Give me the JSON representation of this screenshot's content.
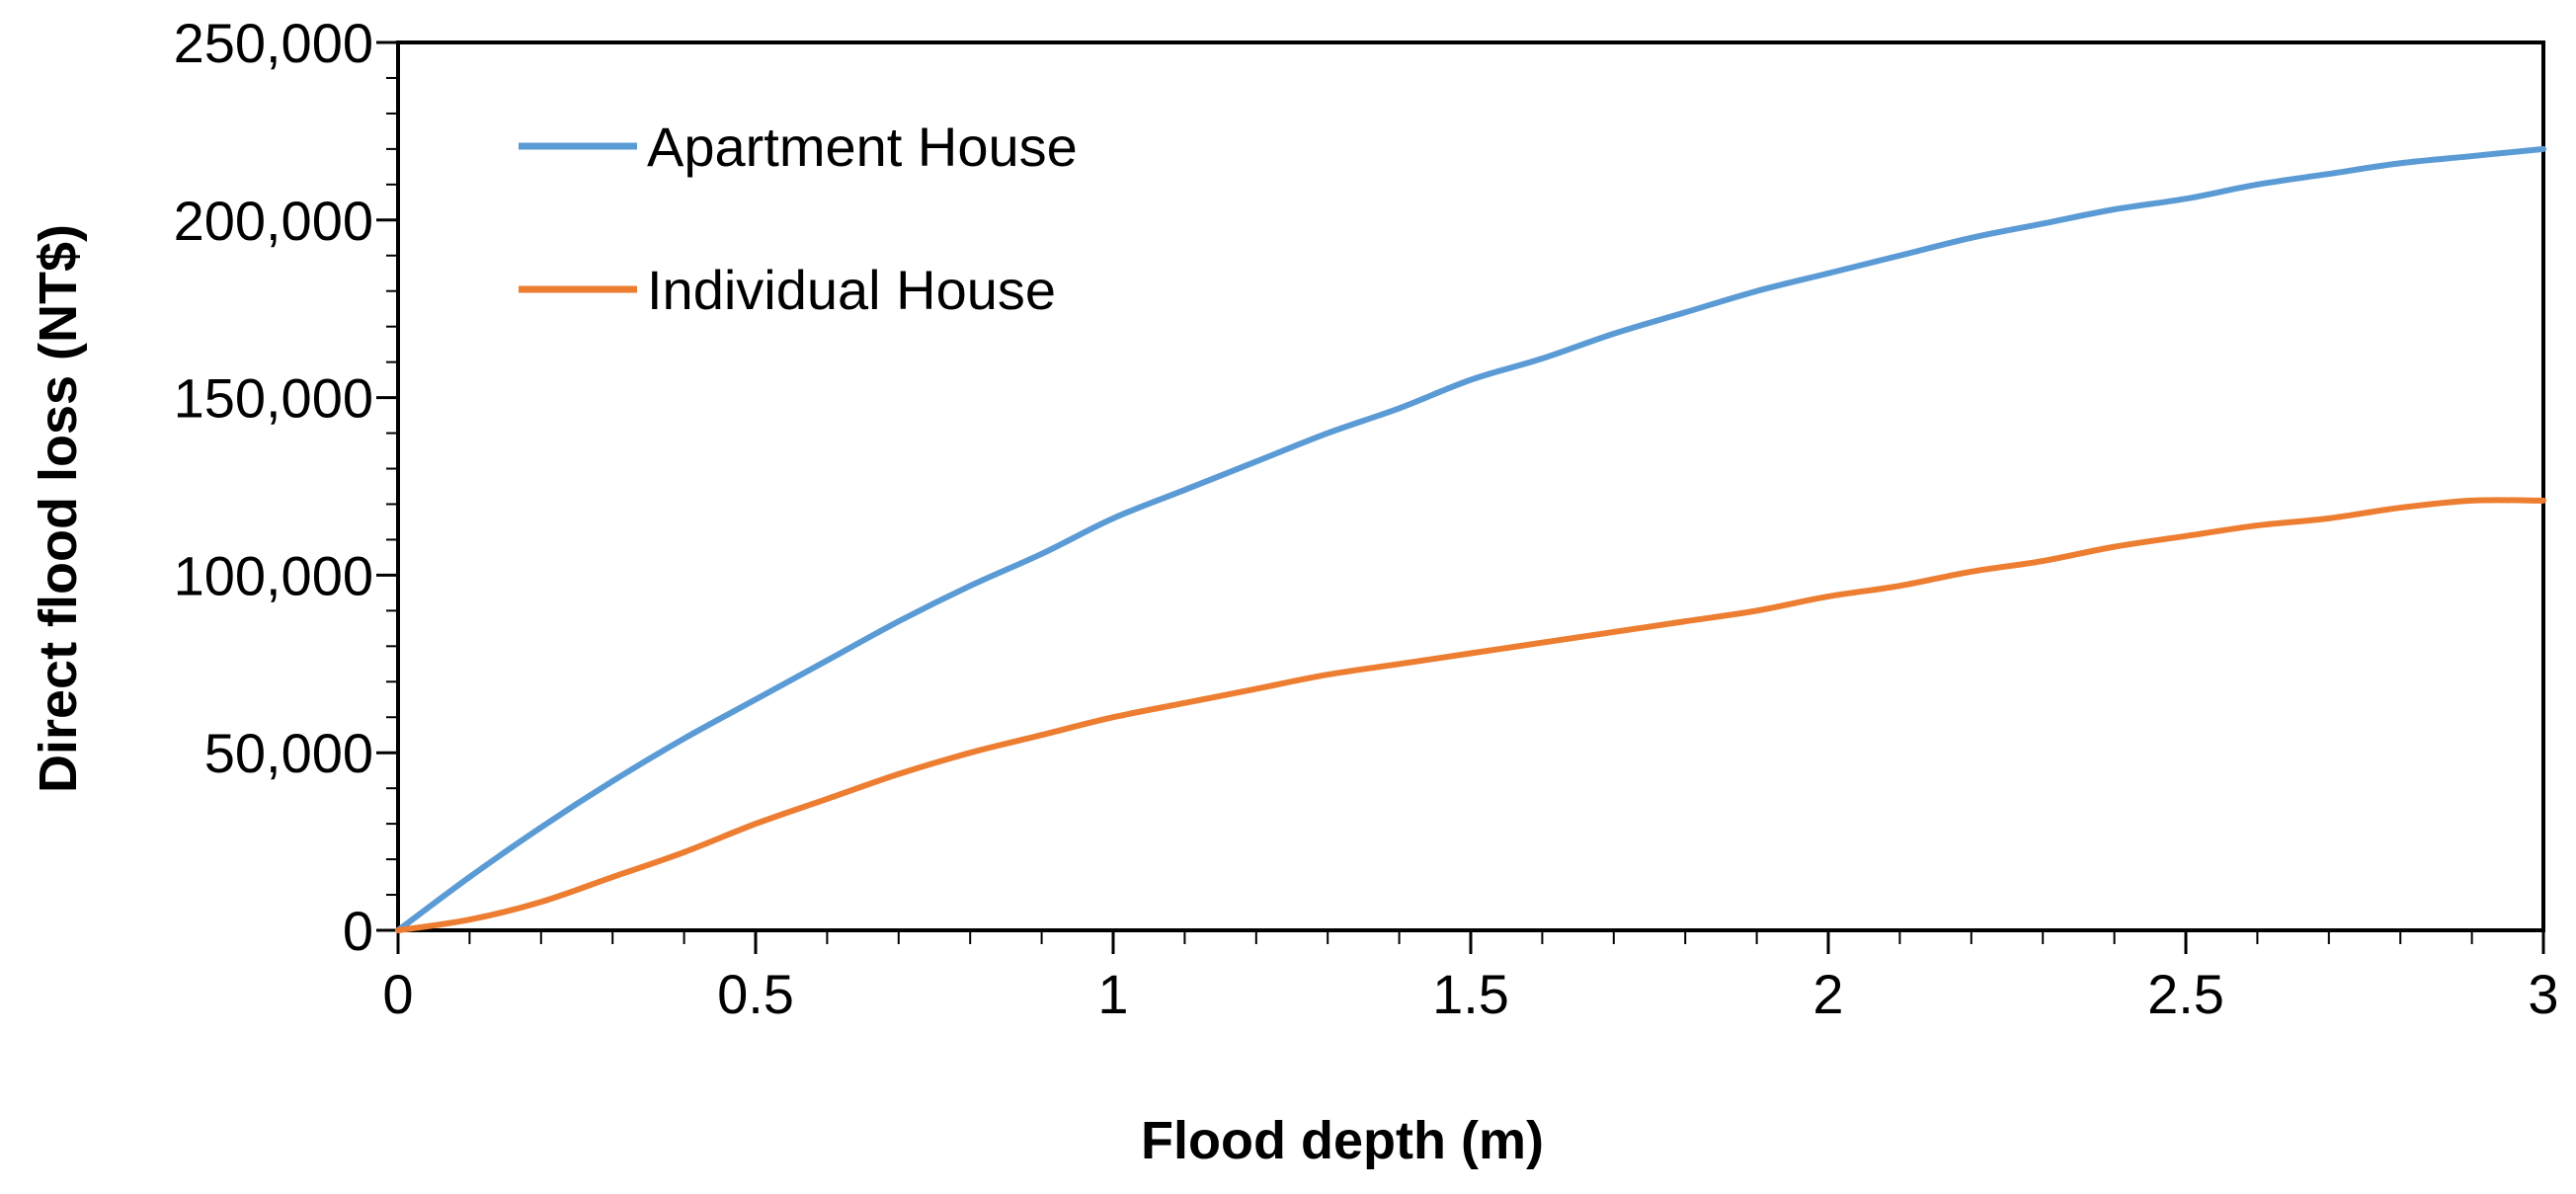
{
  "chart_data": {
    "type": "line",
    "title": "",
    "xlabel": "Flood depth (m)",
    "ylabel": "Direct flood loss (NT$)",
    "xlim": [
      0,
      3
    ],
    "ylim": [
      0,
      250000
    ],
    "x_ticks": [
      0,
      0.5,
      1,
      1.5,
      2,
      2.5,
      3
    ],
    "x_tick_labels": [
      "0",
      "0.5",
      "1",
      "1.5",
      "2",
      "2.5",
      "3"
    ],
    "x_minor_step": 0.1,
    "y_ticks": [
      0,
      50000,
      100000,
      150000,
      200000,
      250000
    ],
    "y_tick_labels": [
      "0",
      "50,000",
      "100,000",
      "150,000",
      "200,000",
      "250,000"
    ],
    "y_minor_step": 10000,
    "grid": false,
    "legend_position": "top-left",
    "series": [
      {
        "name": "Apartment House",
        "color": "#5B9BD5",
        "x": [
          0,
          0.1,
          0.2,
          0.3,
          0.4,
          0.5,
          0.6,
          0.7,
          0.8,
          0.9,
          1.0,
          1.1,
          1.2,
          1.3,
          1.4,
          1.5,
          1.6,
          1.7,
          1.8,
          1.9,
          2.0,
          2.1,
          2.2,
          2.3,
          2.4,
          2.5,
          2.6,
          2.7,
          2.8,
          2.9,
          3.0
        ],
        "y": [
          0,
          15000,
          29000,
          42000,
          54000,
          65000,
          76000,
          87000,
          97000,
          106000,
          116000,
          124000,
          132000,
          140000,
          147000,
          155000,
          161000,
          168000,
          174000,
          180000,
          185000,
          190000,
          195000,
          199000,
          203000,
          206000,
          210000,
          213000,
          216000,
          218000,
          220000
        ]
      },
      {
        "name": "Individual House",
        "color": "#ED7D31",
        "x": [
          0,
          0.1,
          0.2,
          0.3,
          0.4,
          0.5,
          0.6,
          0.7,
          0.8,
          0.9,
          1.0,
          1.1,
          1.2,
          1.3,
          1.4,
          1.5,
          1.6,
          1.7,
          1.8,
          1.9,
          2.0,
          2.1,
          2.2,
          2.3,
          2.4,
          2.5,
          2.6,
          2.7,
          2.8,
          2.9,
          3.0
        ],
        "y": [
          0,
          3000,
          8000,
          15000,
          22000,
          30000,
          37000,
          44000,
          50000,
          55000,
          60000,
          64000,
          68000,
          72000,
          75000,
          78000,
          81000,
          84000,
          87000,
          90000,
          94000,
          97000,
          101000,
          104000,
          108000,
          111000,
          114000,
          116000,
          119000,
          121000,
          121000
        ]
      }
    ]
  }
}
